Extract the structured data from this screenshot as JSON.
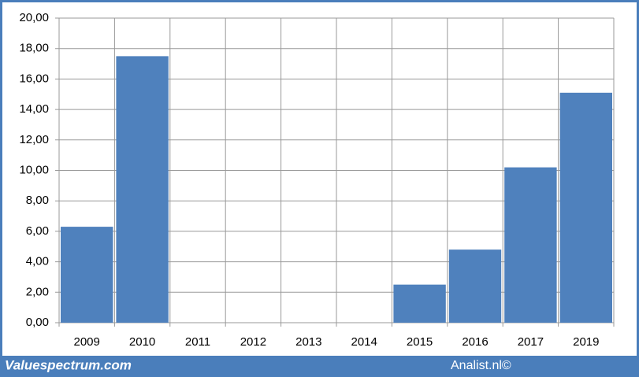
{
  "chart_data": {
    "type": "bar",
    "categories": [
      "2009",
      "2010",
      "2011",
      "2012",
      "2013",
      "2014",
      "2015",
      "2016",
      "2017",
      "2019"
    ],
    "values": [
      6.3,
      17.5,
      null,
      null,
      null,
      null,
      2.5,
      4.8,
      10.2,
      15.1
    ],
    "color": "#4f81bd",
    "ylim": [
      0,
      20
    ],
    "yticks": [
      {
        "value": 0,
        "label": "0,00"
      },
      {
        "value": 2,
        "label": "2,00"
      },
      {
        "value": 4,
        "label": "4,00"
      },
      {
        "value": 6,
        "label": "6,00"
      },
      {
        "value": 8,
        "label": "8,00"
      },
      {
        "value": 10,
        "label": "10,00"
      },
      {
        "value": 12,
        "label": "12,00"
      },
      {
        "value": 14,
        "label": "14,00"
      },
      {
        "value": 16,
        "label": "16,00"
      },
      {
        "value": 18,
        "label": "18,00"
      },
      {
        "value": 20,
        "label": "20,00"
      }
    ],
    "grid": true
  },
  "footer": {
    "left": "Valuespectrum.com",
    "right": "Analist.nl©"
  }
}
